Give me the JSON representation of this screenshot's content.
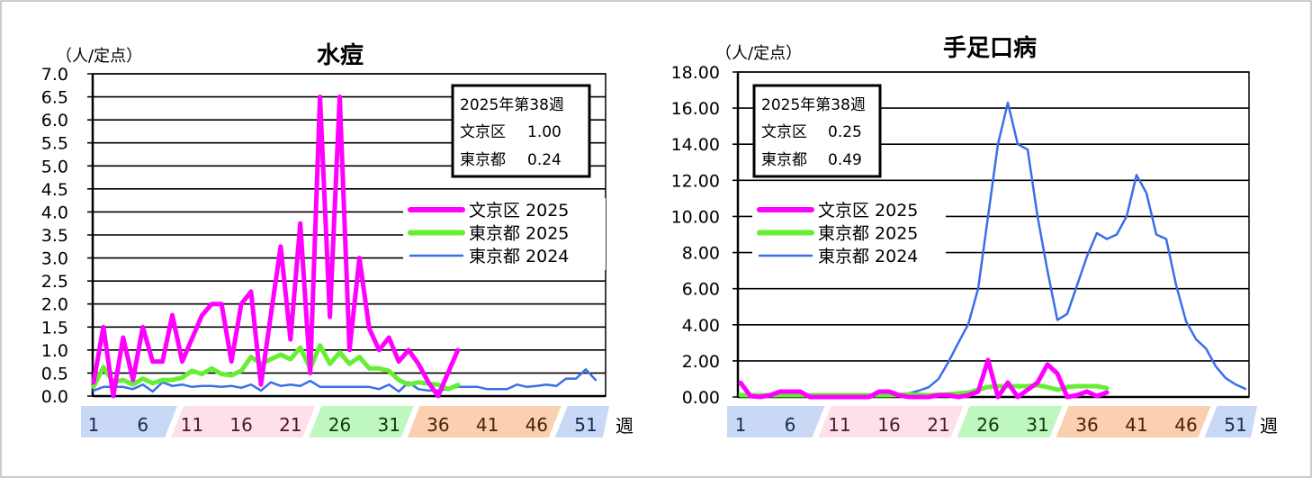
{
  "colors": {
    "bunkyo_2025": "#ff00ff",
    "tokyo_2025": "#66ee33",
    "tokyo_2024": "#3a6ee8",
    "band_blue": "#c9d9f5",
    "band_pink": "#fde0ec",
    "band_green": "#bff7c0",
    "band_orange": "#fbd0b0",
    "band_text_blue": "#1a2a55",
    "band_text_pink": "#4a1a2a",
    "band_text_green": "#0f3a10",
    "band_text_orange": "#4a2208"
  },
  "chart_data": [
    {
      "type": "line",
      "title": "水痘",
      "ylabel": "（人/定点）",
      "xlabel": "週",
      "ylim": [
        0,
        7
      ],
      "ystep": 0.5,
      "ytick_labels": [
        "0.0",
        "0.5",
        "1.0",
        "1.5",
        "2.0",
        "2.5",
        "3.0",
        "3.5",
        "4.0",
        "4.5",
        "5.0",
        "5.5",
        "6.0",
        "6.5",
        "7.0"
      ],
      "xtick_labels": [
        "1",
        "6",
        "11",
        "16",
        "21",
        "26",
        "31",
        "36",
        "41",
        "46",
        "51"
      ],
      "grid": true,
      "legend_position": "right",
      "info_box": {
        "heading": "2025年第38週",
        "rows": [
          {
            "label": "文京区",
            "value": "1.00"
          },
          {
            "label": "東京都",
            "value": "0.24"
          }
        ]
      },
      "series": [
        {
          "name": "文京区 2025",
          "color_key": "bunkyo_2025",
          "width": "thick",
          "values": [
            0.3,
            1.5,
            0.0,
            1.27,
            0.35,
            1.5,
            0.75,
            0.75,
            1.76,
            0.75,
            1.25,
            1.75,
            2.0,
            2.0,
            0.75,
            2.0,
            2.27,
            0.25,
            1.75,
            3.25,
            1.23,
            3.75,
            0.5,
            6.5,
            1.72,
            6.5,
            1.0,
            3.0,
            1.47,
            1.0,
            1.27,
            0.75,
            1.0,
            0.7,
            0.3,
            0.0,
            0.5,
            1.0
          ]
        },
        {
          "name": "東京都 2025",
          "color_key": "tokyo_2025",
          "width": "thick",
          "values": [
            0.2,
            0.63,
            0.3,
            0.35,
            0.25,
            0.38,
            0.28,
            0.35,
            0.35,
            0.4,
            0.55,
            0.48,
            0.6,
            0.48,
            0.45,
            0.55,
            0.85,
            0.7,
            0.8,
            0.9,
            0.8,
            1.05,
            0.6,
            1.1,
            0.7,
            0.95,
            0.7,
            0.85,
            0.6,
            0.6,
            0.55,
            0.35,
            0.25,
            0.3,
            0.27,
            0.25,
            0.15,
            0.24
          ]
        },
        {
          "name": "東京都 2024",
          "color_key": "tokyo_2024",
          "width": "thin",
          "values": [
            0.12,
            0.2,
            0.2,
            0.2,
            0.15,
            0.25,
            0.1,
            0.3,
            0.22,
            0.25,
            0.2,
            0.22,
            0.22,
            0.2,
            0.22,
            0.18,
            0.25,
            0.12,
            0.3,
            0.22,
            0.25,
            0.22,
            0.33,
            0.2,
            0.2,
            0.2,
            0.2,
            0.2,
            0.2,
            0.15,
            0.25,
            0.1,
            0.3,
            0.15,
            0.12,
            0.12,
            0.15,
            0.2,
            0.2,
            0.2,
            0.15,
            0.15,
            0.15,
            0.25,
            0.2,
            0.22,
            0.25,
            0.22,
            0.38,
            0.38,
            0.58,
            0.35
          ]
        }
      ]
    },
    {
      "type": "line",
      "title": "手足口病",
      "ylabel": "（人/定点）",
      "xlabel": "週",
      "ylim": [
        0,
        18
      ],
      "ystep": 2,
      "ytick_labels": [
        "0.00",
        "2.00",
        "4.00",
        "6.00",
        "8.00",
        "10.00",
        "12.00",
        "14.00",
        "16.00",
        "18.00"
      ],
      "xtick_labels": [
        "1",
        "6",
        "11",
        "16",
        "21",
        "26",
        "31",
        "36",
        "41",
        "46",
        "51"
      ],
      "grid": true,
      "legend_position": "left",
      "info_box": {
        "heading": "2025年第38週",
        "rows": [
          {
            "label": "文京区",
            "value": "0.25"
          },
          {
            "label": "東京都",
            "value": "0.49"
          }
        ]
      },
      "series": [
        {
          "name": "文京区 2025",
          "color_key": "bunkyo_2025",
          "width": "thick",
          "values": [
            0.79,
            0.05,
            0.0,
            0.1,
            0.3,
            0.3,
            0.3,
            0.0,
            0.0,
            0.0,
            0.0,
            0.0,
            0.0,
            0.0,
            0.3,
            0.3,
            0.1,
            0.0,
            0.0,
            0.0,
            0.1,
            0.1,
            0.0,
            0.1,
            0.3,
            2.05,
            0.0,
            0.8,
            0.0,
            0.4,
            0.8,
            1.8,
            1.3,
            0.0,
            0.1,
            0.3,
            0.05,
            0.25
          ]
        },
        {
          "name": "東京都 2025",
          "color_key": "tokyo_2025",
          "width": "thick",
          "values": [
            0.1,
            0.1,
            0.1,
            0.1,
            0.1,
            0.1,
            0.1,
            0.1,
            0.1,
            0.1,
            0.1,
            0.1,
            0.1,
            0.1,
            0.1,
            0.1,
            0.12,
            0.15,
            0.12,
            0.1,
            0.12,
            0.15,
            0.2,
            0.25,
            0.4,
            0.55,
            0.6,
            0.6,
            0.6,
            0.6,
            0.65,
            0.55,
            0.4,
            0.55,
            0.6,
            0.6,
            0.6,
            0.49
          ]
        },
        {
          "name": "東京都 2024",
          "color_key": "tokyo_2024",
          "width": "thin",
          "values": [
            0.1,
            0.1,
            0.05,
            0.1,
            0.05,
            0.05,
            0.05,
            0.05,
            0.05,
            0.05,
            0.05,
            0.05,
            0.05,
            0.1,
            0.05,
            0.1,
            0.15,
            0.2,
            0.35,
            0.54,
            1.0,
            1.94,
            3.0,
            4.03,
            6.0,
            10.0,
            14.0,
            16.3,
            14.0,
            13.7,
            10.0,
            7.0,
            4.27,
            4.6,
            6.2,
            7.8,
            9.08,
            8.75,
            9.0,
            10.0,
            12.3,
            11.3,
            9.0,
            8.75,
            6.2,
            4.2,
            3.2,
            2.7,
            1.7,
            1.05,
            0.7,
            0.45
          ]
        }
      ]
    }
  ],
  "bands": [
    {
      "from": 1,
      "to": 8,
      "color_key": "band_blue",
      "text_key": "band_text_blue"
    },
    {
      "from": 9,
      "to": 22,
      "color_key": "band_pink",
      "text_key": "band_text_pink"
    },
    {
      "from": 23,
      "to": 32,
      "color_key": "band_green",
      "text_key": "band_text_green"
    },
    {
      "from": 33,
      "to": 47,
      "color_key": "band_orange",
      "text_key": "band_text_orange"
    },
    {
      "from": 48,
      "to": 52,
      "color_key": "band_blue",
      "text_key": "band_text_blue"
    }
  ]
}
